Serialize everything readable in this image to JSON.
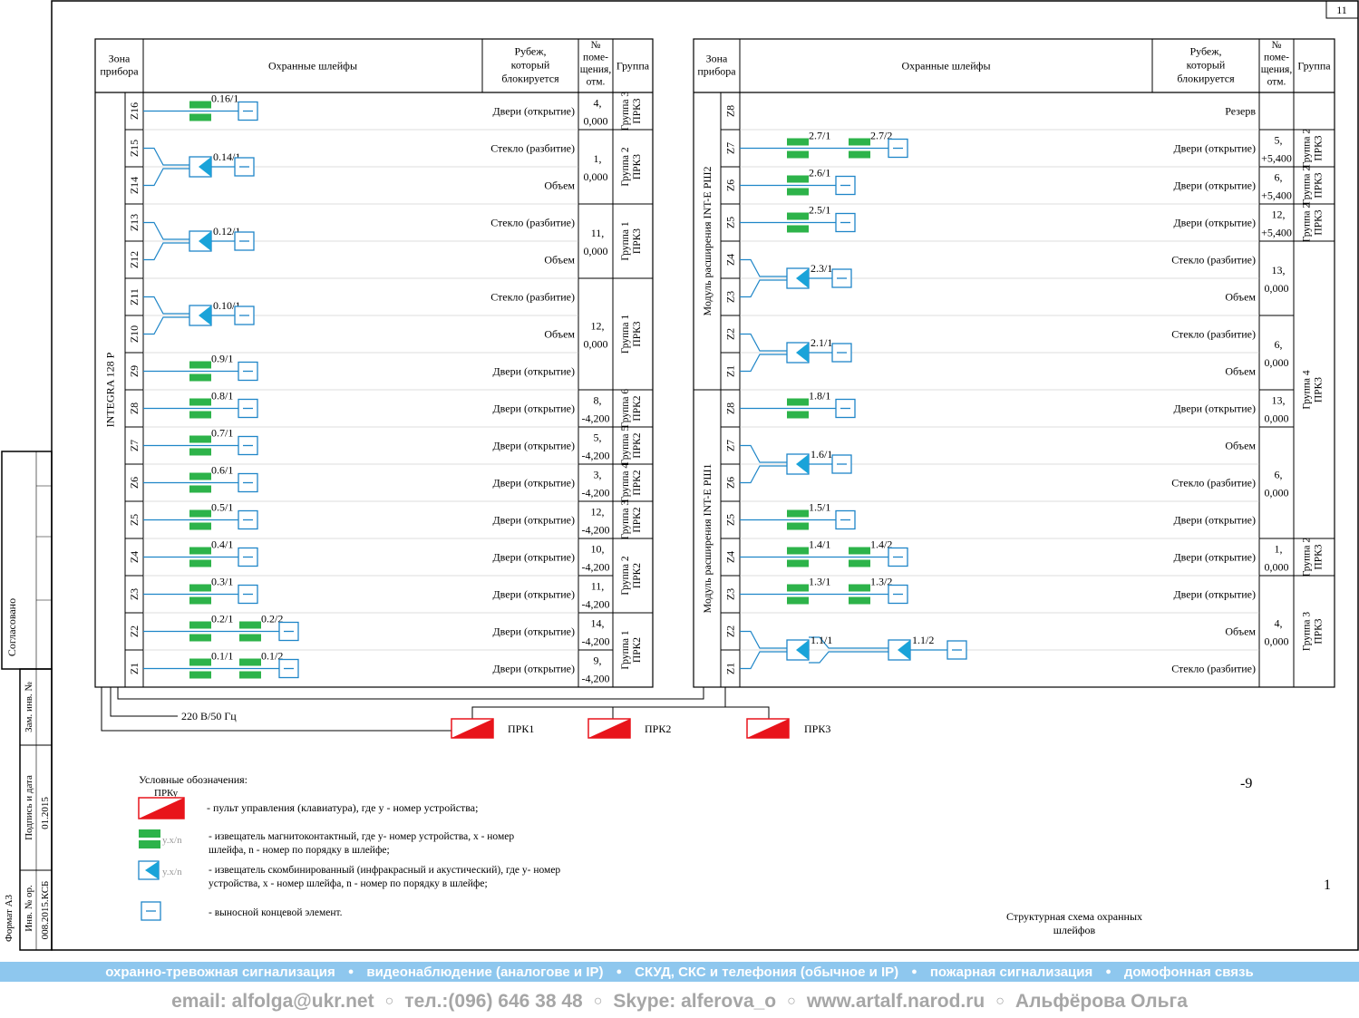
{
  "sheet_number": "11",
  "side_stamp": {
    "agreed": "Согласовано",
    "replace_inv": "Зам. инв. №",
    "sign_date": "Подпись и дата",
    "date_value": "01.2015",
    "inv_orig": "Инв. № ор.",
    "doc_code": "008.2015.КСБ",
    "format": "Формат А3"
  },
  "headers": {
    "zone": [
      "Зона",
      "прибора"
    ],
    "loops": "Охранные шлейфы",
    "boundary": [
      "Рубеж,",
      "который",
      "блокируется"
    ],
    "room": [
      "№",
      "поме-",
      "щения,",
      "отм."
    ],
    "group": "Группа"
  },
  "left_table": {
    "device": "INTEGRA 128 P",
    "zones": [
      "Z16",
      "Z15",
      "Z14",
      "Z13",
      "Z12",
      "Z11",
      "Z10",
      "Z9",
      "Z8",
      "Z7",
      "Z6",
      "Z5",
      "Z4",
      "Z3",
      "Z2",
      "Z1"
    ],
    "boundaries": [
      "Двери (открытие)",
      "Стекло (разбитие)",
      "Объем",
      "Стекло (разбитие)",
      "Объем",
      "Стекло (разбитие)",
      "Объем",
      "Двери (открытие)",
      "Двери (открытие)",
      "Двери (открытие)",
      "Двери (открытие)",
      "Двери (открытие)",
      "Двери (открытие)",
      "Двери (открытие)",
      "Двери (открытие)",
      "Двери (открытие)"
    ],
    "rooms": [
      {
        "span": [
          0,
          0
        ],
        "lines": [
          "4,",
          "0,000"
        ]
      },
      {
        "span": [
          1,
          2
        ],
        "lines": [
          "1,",
          "0,000"
        ]
      },
      {
        "span": [
          3,
          4
        ],
        "lines": [
          "11,",
          "0,000"
        ]
      },
      {
        "span": [
          5,
          7
        ],
        "lines": [
          "12,",
          "0,000"
        ]
      },
      {
        "span": [
          8,
          8
        ],
        "lines": [
          "8,",
          "-4,200"
        ]
      },
      {
        "span": [
          9,
          9
        ],
        "lines": [
          "5,",
          "-4,200"
        ]
      },
      {
        "span": [
          10,
          10
        ],
        "lines": [
          "3,",
          "-4,200"
        ]
      },
      {
        "span": [
          11,
          11
        ],
        "lines": [
          "12,",
          "-4,200"
        ]
      },
      {
        "span": [
          12,
          12
        ],
        "lines": [
          "10,",
          "-4,200"
        ]
      },
      {
        "span": [
          13,
          13
        ],
        "lines": [
          "11,",
          "-4,200"
        ]
      },
      {
        "span": [
          14,
          14
        ],
        "lines": [
          "14,",
          "-4,200"
        ]
      },
      {
        "span": [
          15,
          15
        ],
        "lines": [
          "9,",
          "-4,200"
        ]
      }
    ],
    "groups": [
      {
        "span": [
          0,
          0
        ],
        "lines": [
          "Группа 3",
          "ПРК3"
        ]
      },
      {
        "span": [
          1,
          2
        ],
        "lines": [
          "Группа 2",
          "ПРК3"
        ]
      },
      {
        "span": [
          3,
          4
        ],
        "lines": [
          "Группа 1",
          "ПРК3"
        ]
      },
      {
        "span": [
          5,
          7
        ],
        "lines": [
          "Группа 1",
          "ПРК3"
        ]
      },
      {
        "span": [
          8,
          8
        ],
        "lines": [
          "Группа 6",
          "ПРК2"
        ]
      },
      {
        "span": [
          9,
          9
        ],
        "lines": [
          "Группа 5",
          "ПРК2"
        ]
      },
      {
        "span": [
          10,
          10
        ],
        "lines": [
          "Группа 4",
          "ПРК2"
        ]
      },
      {
        "span": [
          11,
          11
        ],
        "lines": [
          "Группа 3",
          "ПРК2"
        ]
      },
      {
        "span": [
          12,
          13
        ],
        "lines": [
          "Группа 2",
          "ПРК2"
        ]
      },
      {
        "span": [
          14,
          15
        ],
        "lines": [
          "Группа 1",
          "ПРК2"
        ]
      }
    ],
    "loops": [
      {
        "row": 0,
        "type": "m",
        "labels": [
          "0.16/1"
        ]
      },
      {
        "row": 1,
        "type": "c",
        "labels": [
          "0.14/1"
        ]
      },
      {
        "row": 3,
        "type": "c",
        "labels": [
          "0.12/1"
        ]
      },
      {
        "row": 5,
        "type": "c",
        "labels": [
          "0.10/1"
        ]
      },
      {
        "row": 7,
        "type": "m",
        "labels": [
          "0.9/1"
        ]
      },
      {
        "row": 8,
        "type": "m",
        "labels": [
          "0.8/1"
        ]
      },
      {
        "row": 9,
        "type": "m",
        "labels": [
          "0.7/1"
        ]
      },
      {
        "row": 10,
        "type": "m",
        "labels": [
          "0.6/1"
        ]
      },
      {
        "row": 11,
        "type": "m",
        "labels": [
          "0.5/1"
        ]
      },
      {
        "row": 12,
        "type": "m",
        "labels": [
          "0.4/1"
        ]
      },
      {
        "row": 13,
        "type": "m",
        "labels": [
          "0.3/1"
        ]
      },
      {
        "row": 14,
        "type": "mm",
        "labels": [
          "0.2/1",
          "0.2/2"
        ]
      },
      {
        "row": 15,
        "type": "mm",
        "labels": [
          "0.1/1",
          "0.1/2"
        ]
      }
    ]
  },
  "right_table": {
    "modules": [
      "Модуль расширения INT-E РШ2",
      "Модуль расширения INT-E РШ1"
    ],
    "zones": [
      "Z8",
      "Z7",
      "Z6",
      "Z5",
      "Z4",
      "Z3",
      "Z2",
      "Z1",
      "Z8",
      "Z7",
      "Z6",
      "Z5",
      "Z4",
      "Z3",
      "Z2",
      "Z1"
    ],
    "boundaries": [
      "Резерв",
      "Двери (открытие)",
      "Двери (открытие)",
      "Двери (открытие)",
      "Стекло (разбитие)",
      "Объем",
      "Стекло (разбитие)",
      "Объем",
      "Двери (открытие)",
      "Объем",
      "Стекло (разбитие)",
      "Двери (открытие)",
      "Двери (открытие)",
      "Двери (открытие)",
      "Объем",
      "Стекло (разбитие)"
    ],
    "rooms": [
      {
        "span": [
          0,
          0
        ],
        "lines": []
      },
      {
        "span": [
          1,
          1
        ],
        "lines": [
          "5,",
          "+5,400"
        ]
      },
      {
        "span": [
          2,
          2
        ],
        "lines": [
          "6,",
          "+5,400"
        ]
      },
      {
        "span": [
          3,
          3
        ],
        "lines": [
          "12,",
          "+5,400"
        ]
      },
      {
        "span": [
          4,
          5
        ],
        "lines": [
          "13,",
          "0,000"
        ]
      },
      {
        "span": [
          6,
          7
        ],
        "lines": [
          "6,",
          "0,000"
        ]
      },
      {
        "span": [
          8,
          8
        ],
        "lines": [
          "13,",
          "0,000"
        ]
      },
      {
        "span": [
          9,
          11
        ],
        "lines": [
          "6,",
          "0,000"
        ]
      },
      {
        "span": [
          12,
          12
        ],
        "lines": [
          "1,",
          "0,000"
        ]
      },
      {
        "span": [
          13,
          15
        ],
        "lines": [
          "4,",
          "0,000"
        ]
      }
    ],
    "groups": [
      {
        "span": [
          0,
          0
        ],
        "lines": []
      },
      {
        "span": [
          1,
          1
        ],
        "lines": [
          "Группа 2",
          "ПРК3"
        ]
      },
      {
        "span": [
          2,
          2
        ],
        "lines": [
          "Группа 2",
          "ПРК3"
        ]
      },
      {
        "span": [
          3,
          3
        ],
        "lines": [
          "Группа 2",
          "ПРК3"
        ]
      },
      {
        "span": [
          4,
          11
        ],
        "lines": [
          "Группа 4",
          "ПРК3"
        ]
      },
      {
        "span": [
          12,
          12
        ],
        "lines": [
          "Группа 2",
          "ПРК3"
        ]
      },
      {
        "span": [
          13,
          15
        ],
        "lines": [
          "Группа 3",
          "ПРК3"
        ]
      }
    ],
    "loops": [
      {
        "row": 1,
        "type": "mm",
        "labels": [
          "2.7/1",
          "2.7/2"
        ]
      },
      {
        "row": 2,
        "type": "m",
        "labels": [
          "2.6/1"
        ]
      },
      {
        "row": 3,
        "type": "m",
        "labels": [
          "2.5/1"
        ]
      },
      {
        "row": 4,
        "type": "c",
        "labels": [
          "2.3/1"
        ]
      },
      {
        "row": 6,
        "type": "c",
        "labels": [
          "2.1/1"
        ]
      },
      {
        "row": 8,
        "type": "m",
        "labels": [
          "1.8/1"
        ]
      },
      {
        "row": 9,
        "type": "c",
        "labels": [
          "1.6/1"
        ]
      },
      {
        "row": 11,
        "type": "m",
        "labels": [
          "1.5/1"
        ]
      },
      {
        "row": 12,
        "type": "mm",
        "labels": [
          "1.4/1",
          "1.4/2"
        ]
      },
      {
        "row": 13,
        "type": "mm",
        "labels": [
          "1.3/1",
          "1.3/2"
        ]
      },
      {
        "row": 14,
        "type": "cc",
        "labels": [
          "1.1/1",
          "1.1/2"
        ]
      }
    ]
  },
  "power_label": "220 В/50 Гц",
  "keypads": [
    "ПРК1",
    "ПРК2",
    "ПРК3"
  ],
  "legend": {
    "title": "Условные обозначения:",
    "keypad_label": "ПРКу",
    "keypad_text": "- пульт управления (клавиатура), где у - номер устройства;",
    "mag_label": "y.x/n",
    "mag_text": [
      "- извещатель магнитоконтактный, где у- номер устройства, х - номер",
      "шлейфа, n - номер по порядку в шлейфе;"
    ],
    "comb_label": "y.x/n",
    "comb_text": [
      "- извещатель скомбинированный (инфракрасный и акустический), где у- номер",
      "устройства, х - номер шлейфа, n - номер по порядку в шлейфе;"
    ],
    "eol_text": "- выносной концевой элемент."
  },
  "stamp": {
    "code": "-9",
    "sheet": "1",
    "title": [
      "Структурная схема охранных",
      "шлейфов"
    ]
  },
  "banner_items": [
    "охранно-тревожная сигнализация",
    "видеонаблюдение (аналогове и IP)",
    "СКУД, СКС и телефония (обычное и IP)",
    "пожарная сигнализация",
    "домофонная связь"
  ],
  "contacts": {
    "email": "email: alfolga@ukr.net",
    "phone": "тел.:(096) 646 38 48",
    "skype": "Skype: alferova_o",
    "site": "www.artalf.narod.ru",
    "name": "Альфёрова Ольга"
  },
  "colors": {
    "line": "#1f86c8",
    "magnet": "#2db34a",
    "keypad": "#e8141b"
  }
}
